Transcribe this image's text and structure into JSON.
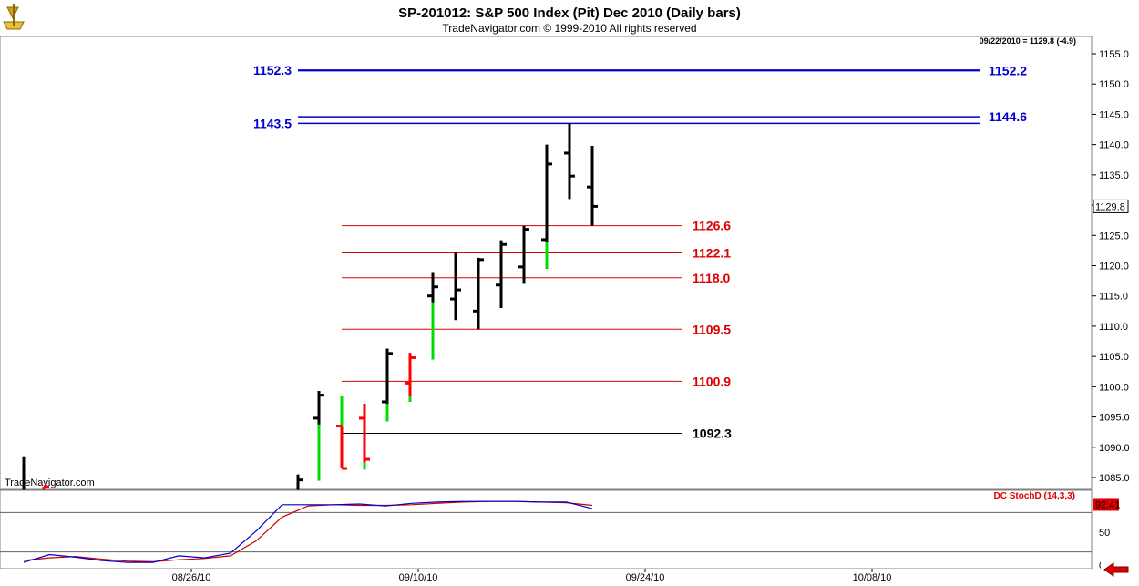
{
  "header": {
    "title": "SP-201012:  S&P 500 Index (Pit) Dec 2010  (Daily bars)",
    "subtitle": "TradeNavigator.com © 1999-2010 All rights reserved",
    "last_readout": "09/22/2010 = 1129.8 (-4.9)",
    "watermark": "TradeNavigator.com"
  },
  "colors": {
    "up_bar": "#000000",
    "down_bar": "#ff0000",
    "up_tail": "#00dd00",
    "resistance": "#0000cc",
    "retrace": "#dd0000",
    "base": "#000000",
    "stoch_k": "#0000cc",
    "stoch_d": "#cc0000",
    "price_tag_bg": "#000000",
    "stoch_tag_bg": "#dd0000"
  },
  "chart_data": {
    "type": "ohlc",
    "y_axis": {
      "ylim": [
        1082,
        1157
      ],
      "ticks": [
        "1085.0",
        "1090.0",
        "1095.0",
        "1100.0",
        "1105.0",
        "1110.0",
        "1115.0",
        "1120.0",
        "1125.0",
        "1130.0",
        "1135.0",
        "1140.0",
        "1145.0",
        "1150.0",
        "1155.0"
      ],
      "last_price_tag": "1129.8"
    },
    "x_axis": {
      "tick_labels": [
        "08/26/10",
        "09/10/10",
        "09/24/10",
        "10/08/10"
      ]
    },
    "bars": [
      {
        "date": "08/19/10",
        "open": null,
        "high": 1088.5,
        "low": 1082,
        "close": null,
        "color": "black"
      },
      {
        "date": "08/20/10",
        "open": null,
        "high": 1083.5,
        "low": 1082,
        "close": 1083.5,
        "color": "red"
      },
      {
        "date": "08/31/10",
        "open": null,
        "high": 1085.5,
        "low": 1082,
        "close": 1084.6,
        "color": "black"
      },
      {
        "date": "09/01/10",
        "open": 1094.8,
        "high": 1099.3,
        "low": 1084.5,
        "close": 1098.6,
        "color": "black"
      },
      {
        "date": "09/02/10",
        "open": 1093.5,
        "high": 1098.5,
        "low": 1086.5,
        "close": 1086.5,
        "color": "red"
      },
      {
        "date": "09/03/10",
        "open": 1094.8,
        "high": 1097.2,
        "low": 1086.3,
        "close": 1088.0,
        "color": "red"
      },
      {
        "date": "09/07/10",
        "open": 1097.5,
        "high": 1106.3,
        "low": 1094.3,
        "close": 1105.5,
        "color": "black"
      },
      {
        "date": "09/08/10",
        "open": 1100.6,
        "high": 1105.6,
        "low": 1097.5,
        "close": 1104.8,
        "color": "red"
      },
      {
        "date": "09/09/10",
        "open": 1115.0,
        "high": 1118.8,
        "low": 1104.5,
        "close": 1116.5,
        "color": "black"
      },
      {
        "date": "09/10/10",
        "open": 1114.5,
        "high": 1122.2,
        "low": 1111.0,
        "close": 1116.0,
        "color": "black"
      },
      {
        "date": "09/13/10",
        "open": 1112.5,
        "high": 1121.3,
        "low": 1109.5,
        "close": 1121.0,
        "color": "black"
      },
      {
        "date": "09/14/10",
        "open": 1116.8,
        "high": 1124.2,
        "low": 1113.0,
        "close": 1123.5,
        "color": "black"
      },
      {
        "date": "09/15/10",
        "open": 1119.8,
        "high": 1126.6,
        "low": 1117.0,
        "close": 1126.0,
        "color": "black"
      },
      {
        "date": "09/16/10",
        "open": 1124.3,
        "high": 1140.0,
        "low": 1119.5,
        "close": 1136.8,
        "color": "black"
      },
      {
        "date": "09/17/10",
        "open": 1138.6,
        "high": 1143.5,
        "low": 1131.0,
        "close": 1134.8,
        "color": "black"
      },
      {
        "date": "09/20/10",
        "open": 1133.0,
        "high": 1139.8,
        "low": 1126.6,
        "close": 1129.8,
        "color": "black"
      }
    ],
    "levels": [
      {
        "side": "left",
        "value": "1152.3",
        "price": 1152.3,
        "color": "blue"
      },
      {
        "side": "right",
        "value": "1152.2",
        "price": 1152.2,
        "color": "blue"
      },
      {
        "side": "left",
        "value": "1143.5",
        "price": 1143.5,
        "color": "blue"
      },
      {
        "side": "right",
        "value": "1144.6",
        "price": 1144.6,
        "color": "blue"
      },
      {
        "side": "right",
        "value": "1126.6",
        "price": 1126.6,
        "color": "red"
      },
      {
        "side": "right",
        "value": "1122.1",
        "price": 1122.1,
        "color": "red"
      },
      {
        "side": "right",
        "value": "1118.0",
        "price": 1118.0,
        "color": "red"
      },
      {
        "side": "right",
        "value": "1109.5",
        "price": 1109.5,
        "color": "red"
      },
      {
        "side": "right",
        "value": "1100.9",
        "price": 1100.9,
        "color": "red"
      },
      {
        "side": "right",
        "value": "1092.3",
        "price": 1092.3,
        "color": "black"
      }
    ],
    "indicator": {
      "name": "DC StochD (14,3,3)",
      "ylim": [
        0,
        100
      ],
      "ticks": [
        "0",
        "50"
      ],
      "reference_lines": [
        20,
        80
      ],
      "last_value": "92.41",
      "k": [
        4,
        16,
        12,
        7,
        4,
        4,
        14,
        11,
        18,
        52,
        92,
        92,
        92,
        93,
        90,
        94,
        96,
        97,
        97,
        97,
        96,
        96,
        86
      ],
      "d": [
        7,
        11,
        13,
        9,
        6,
        5,
        8,
        10,
        14,
        37,
        73,
        90,
        92,
        91,
        91,
        92,
        94,
        96,
        97,
        97,
        96,
        95,
        91
      ]
    }
  }
}
